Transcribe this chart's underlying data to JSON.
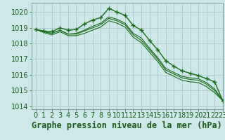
{
  "title": "Graphe pression niveau de la mer (hPa)",
  "background_color": "#cce8e8",
  "grid_color": "#b0cccc",
  "line_color": "#1a6b1a",
  "border_color": "#7a9a9a",
  "xlim": [
    -0.5,
    23
  ],
  "ylim": [
    1013.8,
    1020.6
  ],
  "yticks": [
    1014,
    1015,
    1016,
    1017,
    1018,
    1019,
    1020
  ],
  "xticks": [
    0,
    1,
    2,
    3,
    4,
    5,
    6,
    7,
    8,
    9,
    10,
    11,
    12,
    13,
    14,
    15,
    16,
    17,
    18,
    19,
    20,
    21,
    22,
    23
  ],
  "series": [
    [
      1018.9,
      1018.8,
      1018.75,
      1019.0,
      1018.85,
      1018.9,
      1019.25,
      1019.5,
      1019.65,
      1020.25,
      1020.0,
      1019.8,
      1019.15,
      1018.85,
      1018.2,
      1017.6,
      1016.9,
      1016.55,
      1016.25,
      1016.1,
      1015.95,
      1015.75,
      1015.55,
      1014.35
    ],
    [
      1018.9,
      1018.75,
      1018.65,
      1018.85,
      1018.6,
      1018.65,
      1018.85,
      1019.1,
      1019.3,
      1019.7,
      1019.55,
      1019.3,
      1018.65,
      1018.35,
      1017.7,
      1017.1,
      1016.4,
      1016.15,
      1015.9,
      1015.8,
      1015.75,
      1015.5,
      1015.1,
      1014.35
    ],
    [
      1018.9,
      1018.75,
      1018.65,
      1018.85,
      1018.6,
      1018.6,
      1018.8,
      1019.0,
      1019.2,
      1019.6,
      1019.45,
      1019.2,
      1018.55,
      1018.2,
      1017.6,
      1017.0,
      1016.3,
      1016.05,
      1015.8,
      1015.7,
      1015.65,
      1015.4,
      1015.0,
      1014.35
    ],
    [
      1018.9,
      1018.7,
      1018.55,
      1018.75,
      1018.5,
      1018.5,
      1018.65,
      1018.85,
      1019.05,
      1019.45,
      1019.3,
      1019.05,
      1018.4,
      1018.05,
      1017.45,
      1016.85,
      1016.15,
      1015.9,
      1015.65,
      1015.55,
      1015.5,
      1015.25,
      1014.85,
      1014.35
    ]
  ],
  "title_fontsize": 8.5,
  "tick_fontsize": 7
}
